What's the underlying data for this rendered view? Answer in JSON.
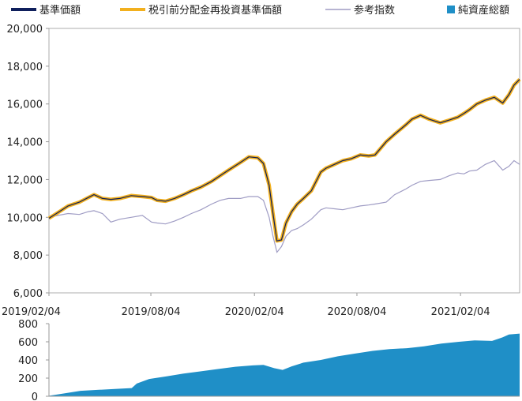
{
  "chart_data": [
    {
      "type": "line",
      "legend_position": "top",
      "x_ticks": [
        "2019/02/04",
        "2019/08/04",
        "2020/02/04",
        "2020/08/04",
        "2021/02/04"
      ],
      "y_ticks": [
        "20,000",
        "18,000",
        "16,000",
        "14,000",
        "12,000",
        "10,000",
        "8,000",
        "6,000"
      ],
      "ylim": [
        6000,
        20000
      ],
      "xlim": [
        "2019/02/04",
        "2021/05/20"
      ],
      "grid": false,
      "x": [
        "2019/02/04",
        "2019/02/20",
        "2019/03/10",
        "2019/03/30",
        "2019/04/15",
        "2019/04/25",
        "2019/05/10",
        "2019/05/25",
        "2019/06/10",
        "2019/06/30",
        "2019/07/20",
        "2019/08/05",
        "2019/08/15",
        "2019/08/30",
        "2019/09/15",
        "2019/10/01",
        "2019/10/15",
        "2019/11/01",
        "2019/11/20",
        "2019/12/05",
        "2019/12/20",
        "2020/01/10",
        "2020/01/25",
        "2020/02/10",
        "2020/02/20",
        "2020/03/01",
        "2020/03/08",
        "2020/03/15",
        "2020/03/23",
        "2020/03/31",
        "2020/04/10",
        "2020/04/20",
        "2020/05/01",
        "2020/05/15",
        "2020/06/01",
        "2020/06/10",
        "2020/06/25",
        "2020/07/10",
        "2020/07/25",
        "2020/08/10",
        "2020/08/25",
        "2020/09/05",
        "2020/09/25",
        "2020/10/10",
        "2020/10/30",
        "2020/11/10",
        "2020/11/25",
        "2020/12/10",
        "2020/12/30",
        "2021/01/15",
        "2021/01/30",
        "2021/02/10",
        "2021/02/20",
        "2021/03/05",
        "2021/03/20",
        "2021/04/05",
        "2021/04/20",
        "2021/05/01",
        "2021/05/10",
        "2021/05/20"
      ],
      "series": [
        {
          "name": "基準価額",
          "color": "#0f1f5c",
          "values": [
            9950,
            10250,
            10600,
            10800,
            11050,
            11200,
            11000,
            10950,
            11000,
            11150,
            11100,
            11050,
            10900,
            10850,
            11000,
            11200,
            11400,
            11600,
            11900,
            12200,
            12500,
            12900,
            13200,
            13150,
            12850,
            11700,
            10200,
            8750,
            8800,
            9700,
            10300,
            10700,
            11000,
            11400,
            12400,
            12600,
            12800,
            13000,
            13100,
            13300,
            13250,
            13300,
            14000,
            14400,
            14900,
            15200,
            15400,
            15200,
            15000,
            15150,
            15300,
            15500,
            15700,
            16000,
            16200,
            16350,
            16050,
            16500,
            17000,
            17300
          ]
        },
        {
          "name": "税引前分配金再投資基準価額",
          "color": "#f2b01e",
          "values": [
            9950,
            10250,
            10600,
            10800,
            11050,
            11200,
            11000,
            10950,
            11000,
            11150,
            11100,
            11050,
            10900,
            10850,
            11000,
            11200,
            11400,
            11600,
            11900,
            12200,
            12500,
            12900,
            13200,
            13150,
            12850,
            11700,
            10200,
            8750,
            8800,
            9700,
            10300,
            10700,
            11000,
            11400,
            12400,
            12600,
            12800,
            13000,
            13100,
            13300,
            13250,
            13300,
            14000,
            14400,
            14900,
            15200,
            15400,
            15200,
            15000,
            15150,
            15300,
            15500,
            15700,
            16000,
            16200,
            16350,
            16050,
            16500,
            17000,
            17300
          ]
        },
        {
          "name": "参考指数",
          "color": "#9f9cc4",
          "values": [
            10000,
            10100,
            10200,
            10150,
            10300,
            10350,
            10200,
            9750,
            9900,
            10000,
            10100,
            9750,
            9700,
            9650,
            9800,
            10000,
            10200,
            10400,
            10700,
            10900,
            11000,
            11000,
            11100,
            11100,
            10900,
            10000,
            9000,
            8150,
            8450,
            9000,
            9300,
            9400,
            9600,
            9900,
            10400,
            10500,
            10450,
            10400,
            10500,
            10600,
            10650,
            10700,
            10800,
            11200,
            11500,
            11700,
            11900,
            11950,
            12000,
            12200,
            12350,
            12300,
            12450,
            12500,
            12800,
            13000,
            12500,
            12700,
            13000,
            12800
          ]
        }
      ]
    },
    {
      "type": "area",
      "legend_position": "top-right",
      "y_ticks": [
        "800",
        "600",
        "400",
        "200",
        "0"
      ],
      "ylim": [
        0,
        800
      ],
      "xlim": [
        "2019/02/04",
        "2021/05/20"
      ],
      "x": [
        "2019/02/04",
        "2019/03/01",
        "2019/04/01",
        "2019/05/01",
        "2019/06/01",
        "2019/07/01",
        "2019/07/10",
        "2019/08/01",
        "2019/09/01",
        "2019/10/01",
        "2019/11/01",
        "2019/12/01",
        "2020/01/01",
        "2020/02/01",
        "2020/02/20",
        "2020/03/10",
        "2020/03/25",
        "2020/04/10",
        "2020/05/01",
        "2020/06/01",
        "2020/07/01",
        "2020/08/01",
        "2020/09/01",
        "2020/10/01",
        "2020/11/01",
        "2020/12/01",
        "2021/01/01",
        "2021/02/01",
        "2021/03/01",
        "2021/04/01",
        "2021/04/20",
        "2021/05/01",
        "2021/05/20"
      ],
      "series": [
        {
          "name": "純資産総額",
          "color": "#1f8fc7",
          "values": [
            5,
            30,
            60,
            70,
            80,
            90,
            140,
            190,
            220,
            250,
            275,
            300,
            325,
            340,
            345,
            310,
            290,
            330,
            370,
            400,
            440,
            470,
            500,
            520,
            530,
            550,
            580,
            600,
            615,
            610,
            650,
            680,
            690
          ]
        }
      ]
    }
  ]
}
